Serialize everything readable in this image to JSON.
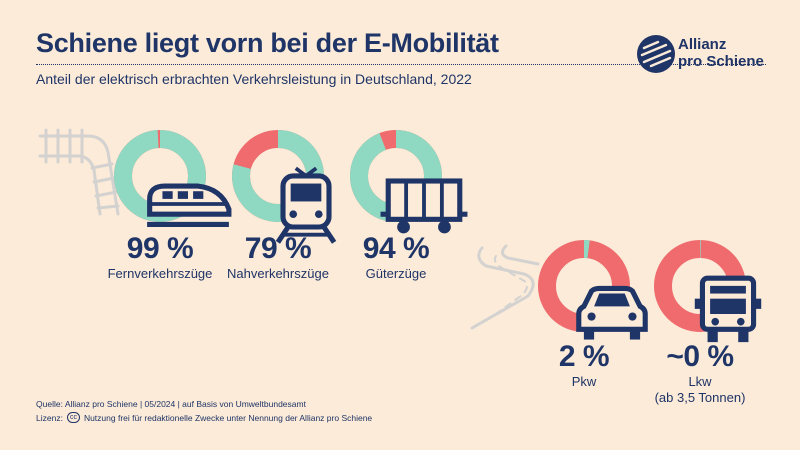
{
  "header": {
    "title": "Schiene liegt vorn bei der E-Mobilität",
    "subtitle": "Anteil der elektrisch erbrachten Verkehrsleistung in Deutschland, 2022"
  },
  "logo": {
    "line1": "Allianz",
    "line2": "pro Schiene"
  },
  "colors": {
    "electric": "#8fd9c2",
    "non_electric": "#ef6b6e",
    "text": "#1f3467",
    "background": "#fbebd8"
  },
  "chart_data": {
    "type": "pie",
    "title": "Schiene liegt vorn bei der E-Mobilität",
    "subtitle": "Anteil der elektrisch erbrachten Verkehrsleistung in Deutschland, 2022",
    "items": [
      {
        "icon": "high-speed-train-icon",
        "label": "Fernverkehrszüge",
        "label2": "",
        "value": 99,
        "value_label": "99 %"
      },
      {
        "icon": "regional-train-icon",
        "label": "Nahverkehrszüge",
        "label2": "",
        "value": 79,
        "value_label": "79 %"
      },
      {
        "icon": "freight-wagon-icon",
        "label": "Güterzüge",
        "label2": "",
        "value": 94,
        "value_label": "94 %"
      },
      {
        "icon": "car-icon",
        "label": "Pkw",
        "label2": "",
        "value": 2,
        "value_label": "2 %"
      },
      {
        "icon": "truck-icon",
        "label": "Lkw",
        "label2": "(ab 3,5 Tonnen)",
        "value": 0.3,
        "value_label": "~0 %"
      }
    ]
  },
  "footer": {
    "source": "Quelle: Allianz pro Schiene | 05/2024 | auf Basis von Umweltbundesamt",
    "license_label": "Lizenz:",
    "license_badge": "cc",
    "license_text": "Nutzung frei für redaktionelle Zwecke unter Nennung der Allianz pro Schiene"
  }
}
